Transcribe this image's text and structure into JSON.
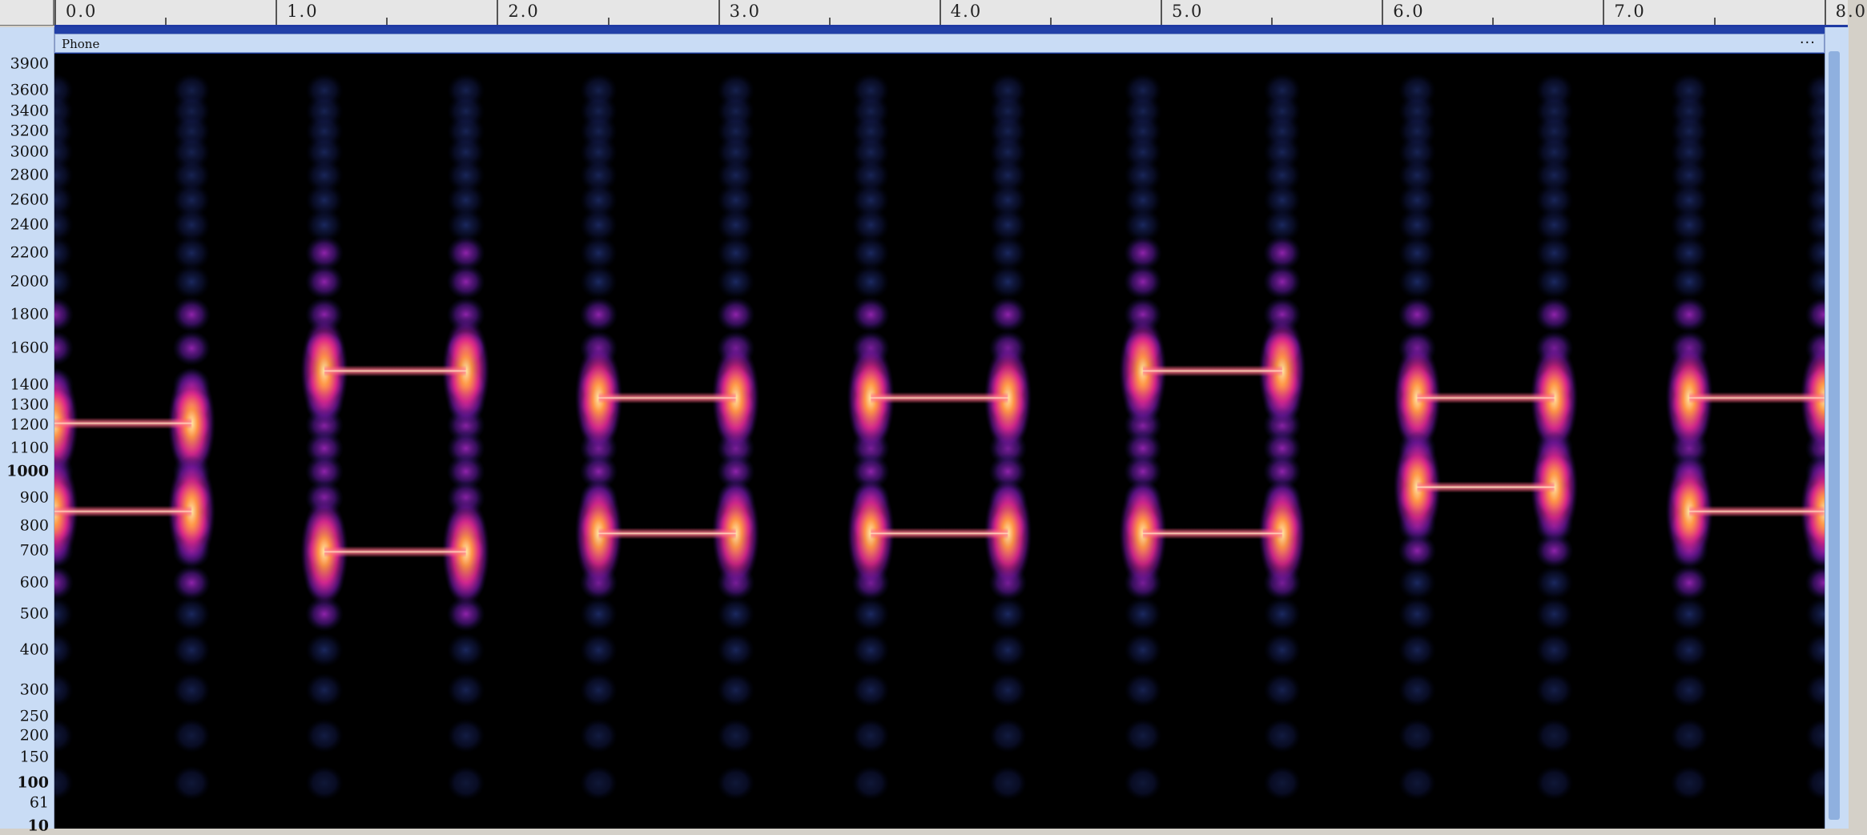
{
  "track": {
    "name": "Phone",
    "menu_icon": "more-icon",
    "menu_label": "···"
  },
  "ruler": {
    "labels": [
      "0.0",
      "1.0",
      "2.0",
      "3.0",
      "4.0",
      "5.0",
      "6.0",
      "7.0",
      "8.0"
    ]
  },
  "freq_axis": {
    "labels": [
      "3900",
      "3600",
      "3400",
      "3200",
      "3000",
      "2800",
      "2600",
      "2400",
      "2200",
      "2000",
      "1800",
      "1600",
      "1400",
      "1300",
      "1200",
      "1100",
      "1000",
      "900",
      "800",
      "700",
      "600",
      "500",
      "400",
      "300",
      "250",
      "200",
      "150",
      "100",
      "61",
      "10"
    ],
    "bold": [
      "1000",
      "100",
      "10"
    ]
  },
  "colors": {
    "background": "#000000",
    "axis_bg": "#c9dcf5",
    "frame": "#2140a8",
    "tone": "#fff2c8"
  },
  "spectrogram": {
    "colormap": "magma",
    "tone_pairs": [
      {
        "t_start": 0.0,
        "t_end": 0.62,
        "freqs": [
          1209,
          852
        ]
      },
      {
        "t_start": 1.22,
        "t_end": 1.86,
        "freqs": [
          1477,
          697
        ]
      },
      {
        "t_start": 2.46,
        "t_end": 3.08,
        "freqs": [
          1336,
          770
        ]
      },
      {
        "t_start": 3.69,
        "t_end": 4.31,
        "freqs": [
          1336,
          770
        ]
      },
      {
        "t_start": 4.92,
        "t_end": 5.55,
        "freqs": [
          1477,
          770
        ]
      },
      {
        "t_start": 6.16,
        "t_end": 6.78,
        "freqs": [
          1336,
          941
        ]
      },
      {
        "t_start": 7.39,
        "t_end": 8.0,
        "freqs": [
          1336,
          852
        ]
      }
    ]
  }
}
